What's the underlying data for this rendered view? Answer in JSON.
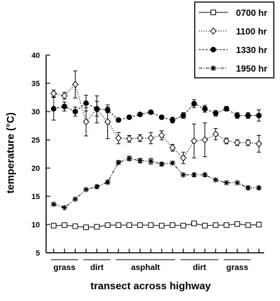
{
  "chart_data": {
    "type": "line",
    "xlabel": "transect across highway",
    "ylabel": "temperature (°C)",
    "ylim": [
      5,
      40
    ],
    "yticks": [
      5,
      10,
      15,
      20,
      25,
      30,
      35,
      40
    ],
    "x": [
      1,
      2,
      3,
      4,
      5,
      6,
      7,
      8,
      9,
      10,
      11,
      12,
      13,
      14,
      15,
      16,
      17,
      18,
      19,
      20
    ],
    "regions": [
      {
        "label": "grass",
        "from": 1,
        "to": 3
      },
      {
        "label": "dirt",
        "from": 4,
        "to": 6
      },
      {
        "label": "asphalt",
        "from": 7,
        "to": 12
      },
      {
        "label": "dirt",
        "from": 13,
        "to": 16
      },
      {
        "label": "grass",
        "from": 17,
        "to": 19
      }
    ],
    "legend_position": "top-right",
    "grid": false,
    "series": [
      {
        "name": "0700 hr",
        "marker": "open-square",
        "line": "solid",
        "values": [
          9.8,
          9.9,
          9.7,
          9.5,
          9.6,
          9.9,
          9.9,
          9.9,
          9.9,
          9.9,
          9.8,
          9.9,
          9.8,
          10.2,
          9.8,
          9.9,
          9.9,
          10.1,
          9.9,
          10.0
        ],
        "errors": [
          0,
          0,
          0,
          0,
          0,
          0,
          0,
          0,
          0,
          0,
          0,
          0,
          0,
          0,
          0,
          0,
          0,
          0,
          0,
          0
        ]
      },
      {
        "name": "1100 hr",
        "marker": "open-diamond",
        "line": "dotted",
        "values": [
          33.2,
          32.8,
          34.8,
          28.2,
          30.4,
          28.2,
          25.3,
          25.2,
          25.3,
          25.3,
          25.8,
          23.6,
          21.8,
          24.8,
          25.0,
          26.0,
          24.8,
          24.5,
          24.5,
          24.3
        ],
        "errors": [
          0.6,
          0.6,
          2.4,
          2.5,
          2.4,
          3.0,
          1.0,
          0.6,
          0.6,
          1.0,
          0.8,
          0.6,
          1.0,
          3.0,
          3.0,
          1.0,
          0.5,
          0.5,
          0.5,
          1.5
        ]
      },
      {
        "name": "1330 hr",
        "marker": "filled-circle",
        "line": "dashed",
        "values": [
          30.5,
          30.9,
          30.0,
          31.5,
          30.5,
          30.3,
          28.5,
          29.0,
          29.5,
          29.9,
          29.0,
          28.5,
          29.3,
          31.4,
          30.5,
          29.7,
          30.5,
          29.3,
          29.3,
          29.3
        ],
        "errors": [
          2.0,
          0.8,
          0.8,
          1.4,
          1.3,
          0.5,
          0.3,
          0.3,
          0.3,
          0.3,
          0.3,
          0.5,
          0.5,
          0.7,
          0.6,
          0.5,
          0.4,
          0.5,
          0.5,
          1.0
        ]
      },
      {
        "name": "1950 hr",
        "marker": "asterisk",
        "line": "dash-dot",
        "values": [
          13.6,
          13.0,
          14.5,
          16.2,
          16.7,
          17.5,
          21.0,
          21.7,
          21.3,
          21.2,
          20.7,
          20.9,
          18.8,
          18.8,
          18.8,
          17.9,
          17.4,
          17.4,
          16.5,
          16.5
        ],
        "errors": [
          0,
          0,
          0,
          0,
          0.3,
          0.3,
          0.3,
          0.4,
          0.4,
          0.5,
          0.3,
          0,
          0,
          0.3,
          0.3,
          0,
          0,
          0,
          0.3,
          0.3
        ]
      }
    ]
  }
}
